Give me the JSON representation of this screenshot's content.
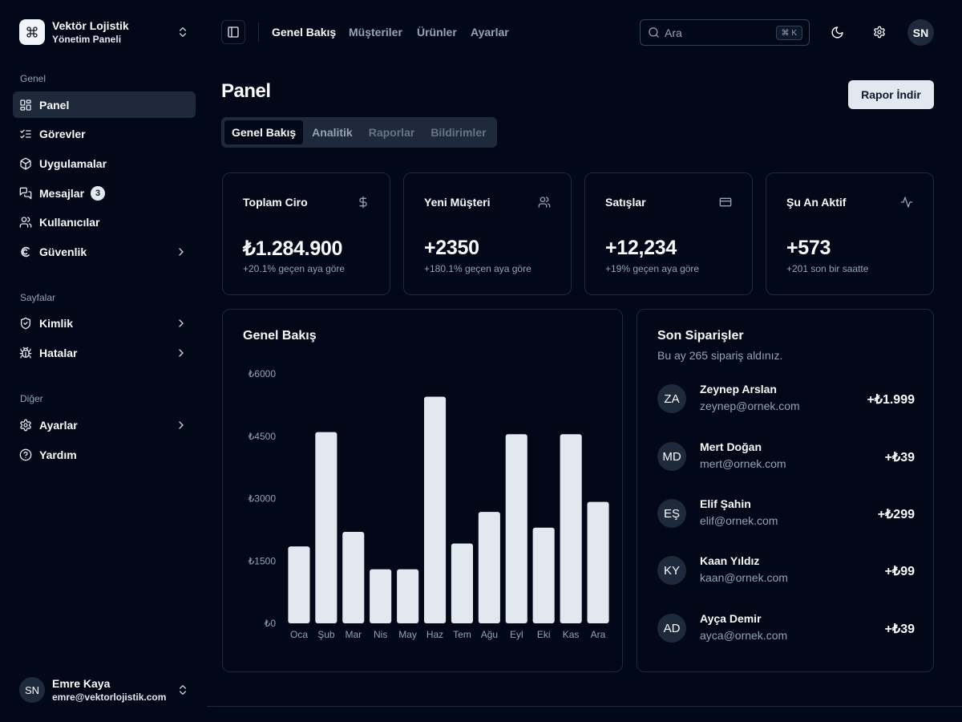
{
  "brand": {
    "name": "Vektör Lojistik",
    "subtitle": "Yönetim Paneli"
  },
  "sidebar": {
    "groups": [
      {
        "label": "Genel"
      },
      {
        "label": "Sayfalar"
      },
      {
        "label": "Diğer"
      }
    ],
    "items": [
      {
        "label": "Panel",
        "icon": "layout-grid-icon"
      },
      {
        "label": "Görevler",
        "icon": "list-checks-icon"
      },
      {
        "label": "Uygulamalar",
        "icon": "package-icon"
      },
      {
        "label": "Mesajlar",
        "icon": "messages-icon",
        "badge": "3"
      },
      {
        "label": "Kullanıcılar",
        "icon": "users-icon"
      },
      {
        "label": "Güvenlik",
        "icon": "security-icon"
      },
      {
        "label": "Kimlik",
        "icon": "shield-check-icon"
      },
      {
        "label": "Hatalar",
        "icon": "bug-icon"
      },
      {
        "label": "Ayarlar",
        "icon": "gear-icon"
      },
      {
        "label": "Yardım",
        "icon": "help-circle-icon"
      }
    ],
    "user": {
      "initials": "SN",
      "name": "Emre Kaya",
      "email": "emre@vektorlojistik.com"
    }
  },
  "topbar": {
    "links": [
      "Genel Bakış",
      "Müşteriler",
      "Ürünler",
      "Ayarlar"
    ],
    "search_placeholder": "Ara",
    "search_shortcut": "⌘ K",
    "avatar_initials": "SN"
  },
  "page": {
    "title": "Panel",
    "download_label": "Rapor İndir",
    "tabs": [
      "Genel Bakış",
      "Analitik",
      "Raporlar",
      "Bildirimler"
    ]
  },
  "stats": [
    {
      "title": "Toplam Ciro",
      "value": "₺1.284.900",
      "sub": "+20.1% geçen aya göre",
      "icon": "dollar-icon"
    },
    {
      "title": "Yeni Müşteri",
      "value": "+2350",
      "sub": "+180.1% geçen aya göre",
      "icon": "users-icon"
    },
    {
      "title": "Satışlar",
      "value": "+12,234",
      "sub": "+19% geçen aya göre",
      "icon": "credit-card-icon"
    },
    {
      "title": "Şu An Aktif",
      "value": "+573",
      "sub": "+201 son bir saatte",
      "icon": "activity-icon"
    }
  ],
  "overview": {
    "title": "Genel Bakış"
  },
  "chart_data": {
    "type": "bar",
    "title": "Genel Bakış",
    "categories": [
      "Oca",
      "Şub",
      "Mar",
      "Nis",
      "May",
      "Haz",
      "Tem",
      "Ağu",
      "Eyl",
      "Eki",
      "Kas",
      "Ara"
    ],
    "values": [
      1850,
      4600,
      2200,
      1300,
      1300,
      5450,
      1920,
      2680,
      4550,
      2300,
      4550,
      2920
    ],
    "ylim": [
      0,
      6000
    ],
    "yticks": [
      "₺0",
      "₺1500",
      "₺3000",
      "₺4500",
      "₺6000"
    ],
    "ytick_values": [
      0,
      1500,
      3000,
      4500,
      6000
    ],
    "grid": false,
    "bar_color": "#e2e8f0"
  },
  "orders": {
    "title": "Son Siparişler",
    "subtitle": "Bu ay 265 sipariş aldınız.",
    "items": [
      {
        "initials": "ZA",
        "name": "Zeynep Arslan",
        "email": "zeynep@ornek.com",
        "amount": "+₺1.999"
      },
      {
        "initials": "MD",
        "name": "Mert Doğan",
        "email": "mert@ornek.com",
        "amount": "+₺39"
      },
      {
        "initials": "EŞ",
        "name": "Elif Şahin",
        "email": "elif@ornek.com",
        "amount": "+₺299"
      },
      {
        "initials": "KY",
        "name": "Kaan Yıldız",
        "email": "kaan@ornek.com",
        "amount": "+₺99"
      },
      {
        "initials": "AD",
        "name": "Ayça Demir",
        "email": "ayca@ornek.com",
        "amount": "+₺39"
      }
    ]
  }
}
